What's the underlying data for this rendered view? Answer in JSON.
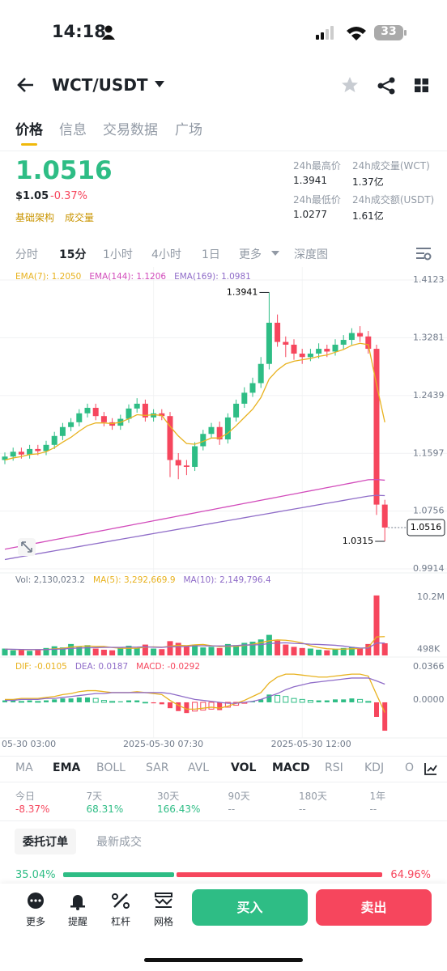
{
  "status": {
    "time": "14:18",
    "battery": "33"
  },
  "header": {
    "pair": "WCT/USDT"
  },
  "tabs": [
    "价格",
    "信息",
    "交易数据",
    "广场"
  ],
  "price": {
    "last": "1.0516",
    "usd": "$1.05",
    "change": "-0.37%",
    "tags": [
      "基础架构",
      "成交量"
    ]
  },
  "stats": [
    {
      "label": "24h最高价",
      "value": "1.3941"
    },
    {
      "label": "24h成交量(WCT)",
      "value": "1.37亿"
    },
    {
      "label": "24h最低价",
      "value": "1.0277"
    },
    {
      "label": "24h成交额(USDT)",
      "value": "1.61亿"
    }
  ],
  "intervals": [
    "分时",
    "15分",
    "1小时",
    "4小时",
    "1日",
    "更多",
    "深度图"
  ],
  "chart_data": {
    "type": "candlestick",
    "ema_legend": [
      "EMA(7): 1.2050",
      "EMA(144): 1.1206",
      "EMA(169): 1.0981"
    ],
    "vol_legend": [
      "Vol: 2,130,023.2",
      "MA(5): 3,292,669.9",
      "MA(10): 2,149,796.4"
    ],
    "macd_legend": [
      "DIF: -0.0105",
      "DEA: 0.0187",
      "MACD: -0.0292"
    ],
    "x_labels": [
      "05-30 03:00",
      "2025-05-30 07:30",
      "2025-05-30 12:00"
    ],
    "up_color": "#2ebd85",
    "down_color": "#f6465d",
    "ylim": [
      0.9914,
      1.4123
    ],
    "yticks": [
      1.4123,
      1.3281,
      1.2439,
      1.1597,
      1.0756,
      0.9914
    ],
    "open": [
      1.15,
      1.155,
      1.162,
      1.158,
      1.166,
      1.163,
      1.172,
      1.185,
      1.198,
      1.205,
      1.218,
      1.226,
      1.214,
      1.205,
      1.2,
      1.21,
      1.225,
      1.232,
      1.212,
      1.218,
      1.214,
      1.15,
      1.142,
      1.14,
      1.17,
      1.188,
      1.198,
      1.18,
      1.212,
      1.232,
      1.248,
      1.262,
      1.29,
      1.35,
      1.322,
      1.318,
      1.305,
      1.3,
      1.305,
      1.312,
      1.308,
      1.318,
      1.325,
      1.335,
      1.33,
      1.312,
      1.085
    ],
    "high": [
      1.161,
      1.168,
      1.168,
      1.172,
      1.172,
      1.178,
      1.191,
      1.204,
      1.211,
      1.224,
      1.232,
      1.232,
      1.22,
      1.211,
      1.216,
      1.231,
      1.24,
      1.238,
      1.224,
      1.224,
      1.22,
      1.16,
      1.15,
      1.176,
      1.194,
      1.204,
      1.206,
      1.218,
      1.238,
      1.256,
      1.27,
      1.3,
      1.3941,
      1.362,
      1.33,
      1.326,
      1.312,
      1.312,
      1.32,
      1.318,
      1.326,
      1.332,
      1.342,
      1.345,
      1.338,
      1.318,
      1.092
    ],
    "low": [
      1.144,
      1.149,
      1.152,
      1.152,
      1.157,
      1.157,
      1.166,
      1.179,
      1.192,
      1.199,
      1.212,
      1.208,
      1.199,
      1.194,
      1.194,
      1.204,
      1.219,
      1.206,
      1.206,
      1.208,
      1.125,
      1.122,
      1.128,
      1.134,
      1.164,
      1.182,
      1.172,
      1.174,
      1.206,
      1.226,
      1.242,
      1.255,
      1.282,
      1.315,
      1.3,
      1.296,
      1.29,
      1.294,
      1.298,
      1.3,
      1.302,
      1.312,
      1.318,
      1.322,
      1.305,
      1.07,
      1.0315
    ],
    "close": [
      1.155,
      1.162,
      1.158,
      1.166,
      1.163,
      1.172,
      1.185,
      1.198,
      1.205,
      1.218,
      1.226,
      1.214,
      1.205,
      1.2,
      1.21,
      1.225,
      1.232,
      1.212,
      1.218,
      1.214,
      1.15,
      1.142,
      1.14,
      1.17,
      1.188,
      1.198,
      1.18,
      1.212,
      1.232,
      1.248,
      1.262,
      1.29,
      1.35,
      1.322,
      1.318,
      1.305,
      1.3,
      1.305,
      1.312,
      1.308,
      1.318,
      1.325,
      1.335,
      1.33,
      1.312,
      1.085,
      1.0516
    ],
    "ema_lines": [
      {
        "color": "#e8b21f",
        "values": [
          1.15,
          1.153,
          1.155,
          1.158,
          1.159,
          1.162,
          1.168,
          1.176,
          1.183,
          1.192,
          1.2,
          1.204,
          1.204,
          1.203,
          1.205,
          1.21,
          1.216,
          1.215,
          1.216,
          1.215,
          1.199,
          1.185,
          1.174,
          1.173,
          1.177,
          1.182,
          1.182,
          1.189,
          1.2,
          1.212,
          1.224,
          1.241,
          1.268,
          1.281,
          1.29,
          1.294,
          1.296,
          1.298,
          1.301,
          1.303,
          1.307,
          1.311,
          1.317,
          1.32,
          1.318,
          1.26,
          1.205
        ]
      },
      {
        "color": "#d24cbb",
        "values": [
          1.02,
          1.0223,
          1.0246,
          1.0269,
          1.0292,
          1.0315,
          1.0338,
          1.0361,
          1.0384,
          1.0407,
          1.043,
          1.0453,
          1.0476,
          1.0499,
          1.0522,
          1.0545,
          1.0568,
          1.0591,
          1.0614,
          1.0637,
          1.066,
          1.0683,
          1.0706,
          1.0729,
          1.0752,
          1.0775,
          1.0798,
          1.0821,
          1.0844,
          1.0867,
          1.089,
          1.0913,
          1.0936,
          1.0959,
          1.0982,
          1.1005,
          1.1028,
          1.1051,
          1.1074,
          1.1097,
          1.112,
          1.1143,
          1.1166,
          1.1189,
          1.1212,
          1.1215,
          1.1206
        ]
      },
      {
        "color": "#8f6cc8",
        "values": [
          1.005,
          1.0071,
          1.0092,
          1.0113,
          1.0134,
          1.0155,
          1.0176,
          1.0197,
          1.0218,
          1.0239,
          1.026,
          1.0281,
          1.0302,
          1.0323,
          1.0344,
          1.0365,
          1.0386,
          1.0407,
          1.0428,
          1.0449,
          1.047,
          1.0491,
          1.0512,
          1.0533,
          1.0554,
          1.0575,
          1.0596,
          1.0617,
          1.0638,
          1.0659,
          1.068,
          1.0701,
          1.0722,
          1.0743,
          1.0764,
          1.0785,
          1.0806,
          1.0827,
          1.0848,
          1.0869,
          1.089,
          1.0911,
          1.0932,
          1.0953,
          1.0974,
          1.0985,
          1.0981
        ]
      }
    ],
    "volume": [
      1200000,
      900000,
      1100000,
      800000,
      1000000,
      1300000,
      1600000,
      1400000,
      2000000,
      1500000,
      1800000,
      1200000,
      1000000,
      900000,
      1400000,
      1700000,
      1300000,
      1900000,
      1200000,
      1100000,
      2500000,
      2200000,
      1600000,
      1900000,
      1400000,
      1500000,
      1300000,
      2000000,
      1800000,
      2200000,
      2400000,
      2800000,
      3600000,
      2600000,
      1900000,
      1500000,
      1300000,
      1200000,
      1000000,
      900000,
      1100000,
      1300000,
      1500000,
      1200000,
      2000000,
      10500000,
      2130023.2
    ],
    "vol_ma": [
      {
        "color": "#e8b21f",
        "values": [
          1100000,
          1050000,
          1000000,
          1000000,
          1000000,
          1020000,
          1160000,
          1240000,
          1460000,
          1560000,
          1660000,
          1580000,
          1580000,
          1380000,
          1260000,
          1240000,
          1260000,
          1440000,
          1500000,
          1440000,
          1600000,
          1780000,
          1720000,
          1860000,
          1920000,
          1720000,
          1540000,
          1620000,
          1600000,
          1740000,
          1940000,
          2240000,
          2560000,
          2720000,
          2660000,
          2480000,
          2180000,
          1700000,
          1380000,
          1180000,
          1100000,
          1100000,
          1160000,
          1200000,
          1420000,
          3240000,
          3292669.9
        ]
      },
      {
        "color": "#8f6cc8",
        "values": [
          1100000,
          1080000,
          1050000,
          1030000,
          1020000,
          1030000,
          1080000,
          1120000,
          1230000,
          1290000,
          1340000,
          1370000,
          1410000,
          1420000,
          1410000,
          1450000,
          1460000,
          1510000,
          1440000,
          1410000,
          1520000,
          1510000,
          1580000,
          1680000,
          1680000,
          1660000,
          1660000,
          1670000,
          1730000,
          1830000,
          1830000,
          1890000,
          2080000,
          2160000,
          2210000,
          2110000,
          2060000,
          1970000,
          1920000,
          1850000,
          1780000,
          1640000,
          1440000,
          1290000,
          1290000,
          2180000,
          2149796.4
        ]
      }
    ],
    "vol_ylim": [
      0,
      10200000
    ],
    "vol_ticks": [
      {
        "value": 10200000,
        "label": "10.2M"
      },
      {
        "value": 498000,
        "label": "498K"
      }
    ],
    "macd": [
      0.002,
      0.002,
      0.001,
      0.002,
      0.001,
      0.002,
      0.003,
      0.004,
      0.004,
      0.005,
      0.005,
      0.004,
      0.002,
      0.001,
      0.001,
      0.002,
      0.002,
      0,
      -0.001,
      -0.002,
      -0.006,
      -0.009,
      -0.011,
      -0.009,
      -0.008,
      -0.007,
      -0.008,
      -0.005,
      -0.003,
      -0.001,
      0.001,
      0.003,
      0.008,
      0.007,
      0.006,
      0.004,
      0.003,
      0.002,
      0.002,
      0.002,
      0.003,
      0.003,
      0.004,
      0.003,
      0.001,
      -0.015,
      -0.0292
    ],
    "macd_lines": [
      {
        "color": "#e8b21f",
        "values": [
          0.003,
          0.003,
          0.004,
          0.004,
          0.004,
          0.005,
          0.006,
          0.008,
          0.009,
          0.011,
          0.012,
          0.012,
          0.011,
          0.01,
          0.01,
          0.01,
          0.011,
          0.01,
          0.009,
          0.008,
          0.002,
          -0.003,
          -0.007,
          -0.007,
          -0.006,
          -0.005,
          -0.006,
          -0.004,
          -0.001,
          0.002,
          0.006,
          0.01,
          0.02,
          0.026,
          0.029,
          0.029,
          0.028,
          0.027,
          0.026,
          0.026,
          0.027,
          0.028,
          0.029,
          0.029,
          0.027,
          0.008,
          -0.0105
        ]
      },
      {
        "color": "#8f6cc8",
        "values": [
          0.002,
          0.002,
          0.003,
          0.003,
          0.003,
          0.004,
          0.004,
          0.005,
          0.006,
          0.007,
          0.008,
          0.009,
          0.009,
          0.01,
          0.01,
          0.01,
          0.01,
          0.01,
          0.01,
          0.01,
          0.009,
          0.007,
          0.005,
          0.003,
          0.002,
          0.001,
          0,
          -0.001,
          -0.001,
          0,
          0.001,
          0.003,
          0.006,
          0.009,
          0.013,
          0.016,
          0.018,
          0.02,
          0.021,
          0.022,
          0.023,
          0.024,
          0.025,
          0.025,
          0.025,
          0.022,
          0.0187
        ]
      }
    ],
    "macd_ylim": [
      -0.035,
      0.0366
    ],
    "macd_ticks": [
      0.0366,
      {
        "value": 0,
        "label": "0.0000"
      }
    ]
  },
  "indicators": [
    "MA",
    "EMA",
    "BOLL",
    "SAR",
    "AVL",
    "VOL",
    "MACD",
    "RSI",
    "KDJ",
    "O"
  ],
  "performance": [
    {
      "label": "今日",
      "value": "-8.37%"
    },
    {
      "label": "7天",
      "value": "68.31%"
    },
    {
      "label": "30天",
      "value": "166.43%"
    },
    {
      "label": "90天",
      "value": "--"
    },
    {
      "label": "180天",
      "value": "--"
    },
    {
      "label": "1年",
      "value": "--"
    }
  ],
  "order_tabs": [
    "委托订单",
    "最新成交"
  ],
  "ratio": {
    "values": [
      35.04,
      64.96
    ],
    "value_labels": [
      "35.04%",
      "64.96%"
    ]
  },
  "nav": [
    "更多",
    "提醒",
    "杠杆",
    "网格"
  ],
  "buttons": [
    "买入",
    "卖出"
  ]
}
